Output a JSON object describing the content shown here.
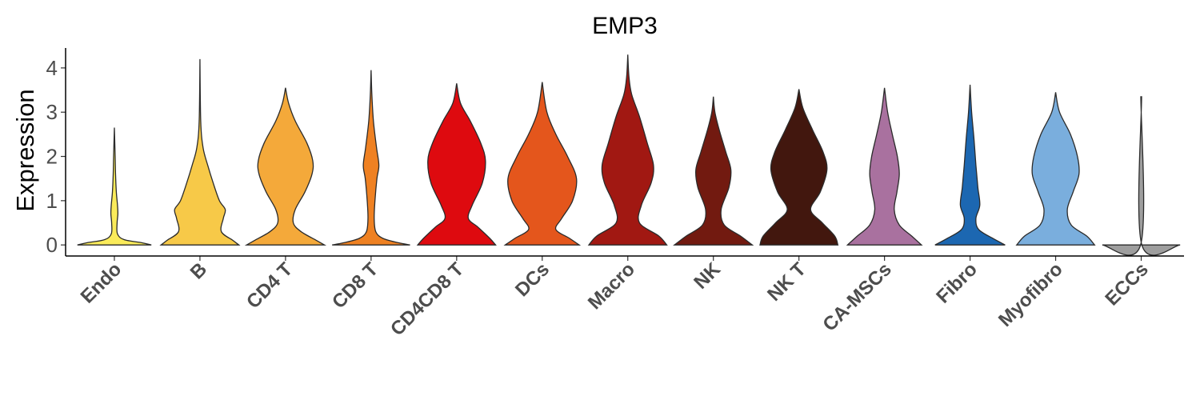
{
  "chart_data": {
    "type": "violin",
    "title": "EMP3",
    "xlabel": "",
    "ylabel": "Expression",
    "ylim": [
      -0.25,
      4.45
    ],
    "yticks": [
      0,
      1,
      2,
      3,
      4
    ],
    "grid": false,
    "legend": "none",
    "categories": [
      "Endo",
      "B",
      "CD4 T",
      "CD8 T",
      "CD4CD8 T",
      "DCs",
      "Macro",
      "NK",
      "NK T",
      "CA-MSCs",
      "Fibro",
      "Myofibro",
      "ECCs"
    ],
    "colors": [
      "#FAEB5A",
      "#F7C948",
      "#F4A93A",
      "#EF8122",
      "#DE0A0F",
      "#E4561C",
      "#A11812",
      "#721A10",
      "#42170E",
      "#A9719F",
      "#1C67B1",
      "#7AAEDD",
      "#9E9E9E"
    ],
    "violins": [
      {
        "max": 2.65,
        "profile": [
          [
            0,
            0.95
          ],
          [
            0.05,
            0.7
          ],
          [
            0.12,
            0.25
          ],
          [
            0.25,
            0.08
          ],
          [
            0.5,
            0.07
          ],
          [
            0.7,
            0.09
          ],
          [
            0.9,
            0.08
          ],
          [
            1.2,
            0.05
          ],
          [
            1.6,
            0.03
          ],
          [
            2.0,
            0.02
          ],
          [
            2.65,
            0
          ]
        ]
      },
      {
        "max": 4.2,
        "profile": [
          [
            0,
            1.0
          ],
          [
            0.1,
            0.85
          ],
          [
            0.3,
            0.55
          ],
          [
            0.6,
            0.6
          ],
          [
            0.8,
            0.65
          ],
          [
            1.0,
            0.5
          ],
          [
            1.4,
            0.34
          ],
          [
            1.8,
            0.2
          ],
          [
            2.2,
            0.08
          ],
          [
            2.8,
            0.02
          ],
          [
            4.2,
            0
          ]
        ]
      },
      {
        "max": 3.55,
        "profile": [
          [
            0,
            1.0
          ],
          [
            0.1,
            0.8
          ],
          [
            0.3,
            0.4
          ],
          [
            0.5,
            0.2
          ],
          [
            0.8,
            0.25
          ],
          [
            1.2,
            0.5
          ],
          [
            1.6,
            0.68
          ],
          [
            1.9,
            0.7
          ],
          [
            2.3,
            0.55
          ],
          [
            2.8,
            0.25
          ],
          [
            3.2,
            0.08
          ],
          [
            3.55,
            0
          ]
        ]
      },
      {
        "max": 3.95,
        "profile": [
          [
            0,
            1.0
          ],
          [
            0.05,
            0.7
          ],
          [
            0.15,
            0.3
          ],
          [
            0.3,
            0.12
          ],
          [
            0.6,
            0.08
          ],
          [
            1.0,
            0.1
          ],
          [
            1.5,
            0.15
          ],
          [
            1.8,
            0.2
          ],
          [
            2.2,
            0.14
          ],
          [
            2.8,
            0.06
          ],
          [
            3.4,
            0.02
          ],
          [
            3.95,
            0
          ]
        ]
      },
      {
        "max": 3.65,
        "profile": [
          [
            0,
            1.0
          ],
          [
            0.15,
            0.85
          ],
          [
            0.4,
            0.55
          ],
          [
            0.6,
            0.3
          ],
          [
            0.9,
            0.4
          ],
          [
            1.4,
            0.66
          ],
          [
            1.9,
            0.74
          ],
          [
            2.3,
            0.62
          ],
          [
            2.8,
            0.35
          ],
          [
            3.2,
            0.1
          ],
          [
            3.65,
            0
          ]
        ]
      },
      {
        "max": 3.68,
        "profile": [
          [
            0,
            0.95
          ],
          [
            0.15,
            0.7
          ],
          [
            0.35,
            0.35
          ],
          [
            0.6,
            0.5
          ],
          [
            1.0,
            0.78
          ],
          [
            1.5,
            0.88
          ],
          [
            2.0,
            0.65
          ],
          [
            2.5,
            0.35
          ],
          [
            3.0,
            0.12
          ],
          [
            3.68,
            0
          ]
        ]
      },
      {
        "max": 4.3,
        "profile": [
          [
            0,
            1.0
          ],
          [
            0.2,
            0.8
          ],
          [
            0.5,
            0.3
          ],
          [
            0.9,
            0.35
          ],
          [
            1.4,
            0.6
          ],
          [
            1.8,
            0.66
          ],
          [
            2.3,
            0.5
          ],
          [
            2.9,
            0.3
          ],
          [
            3.4,
            0.1
          ],
          [
            3.8,
            0.03
          ],
          [
            4.3,
            0
          ]
        ]
      },
      {
        "max": 3.35,
        "profile": [
          [
            0,
            1.0
          ],
          [
            0.2,
            0.7
          ],
          [
            0.45,
            0.28
          ],
          [
            0.8,
            0.2
          ],
          [
            1.3,
            0.4
          ],
          [
            1.7,
            0.45
          ],
          [
            2.1,
            0.32
          ],
          [
            2.6,
            0.15
          ],
          [
            3.0,
            0.04
          ],
          [
            3.35,
            0
          ]
        ]
      },
      {
        "max": 3.52,
        "profile": [
          [
            0,
            1.0
          ],
          [
            0.2,
            0.92
          ],
          [
            0.5,
            0.6
          ],
          [
            0.8,
            0.3
          ],
          [
            1.2,
            0.55
          ],
          [
            1.7,
            0.72
          ],
          [
            2.1,
            0.62
          ],
          [
            2.6,
            0.35
          ],
          [
            3.1,
            0.1
          ],
          [
            3.52,
            0
          ]
        ]
      },
      {
        "max": 3.55,
        "profile": [
          [
            0,
            0.95
          ],
          [
            0.2,
            0.7
          ],
          [
            0.45,
            0.38
          ],
          [
            0.8,
            0.25
          ],
          [
            1.2,
            0.32
          ],
          [
            1.6,
            0.38
          ],
          [
            2.0,
            0.33
          ],
          [
            2.5,
            0.2
          ],
          [
            3.0,
            0.08
          ],
          [
            3.55,
            0
          ]
        ]
      },
      {
        "max": 3.62,
        "profile": [
          [
            0,
            0.9
          ],
          [
            0.15,
            0.58
          ],
          [
            0.35,
            0.22
          ],
          [
            0.6,
            0.15
          ],
          [
            0.9,
            0.25
          ],
          [
            1.3,
            0.2
          ],
          [
            1.8,
            0.15
          ],
          [
            2.4,
            0.1
          ],
          [
            3.0,
            0.04
          ],
          [
            3.62,
            0
          ]
        ]
      },
      {
        "max": 3.45,
        "profile": [
          [
            0,
            1.0
          ],
          [
            0.2,
            0.8
          ],
          [
            0.45,
            0.4
          ],
          [
            0.8,
            0.3
          ],
          [
            1.2,
            0.45
          ],
          [
            1.6,
            0.6
          ],
          [
            2.0,
            0.56
          ],
          [
            2.5,
            0.38
          ],
          [
            3.0,
            0.1
          ],
          [
            3.45,
            0
          ]
        ]
      },
      {
        "max": 3.35,
        "profile": [
          [
            0,
            1.0
          ],
          [
            0.02,
            0.01
          ],
          [
            3.35,
            0.01
          ]
        ]
      }
    ]
  }
}
